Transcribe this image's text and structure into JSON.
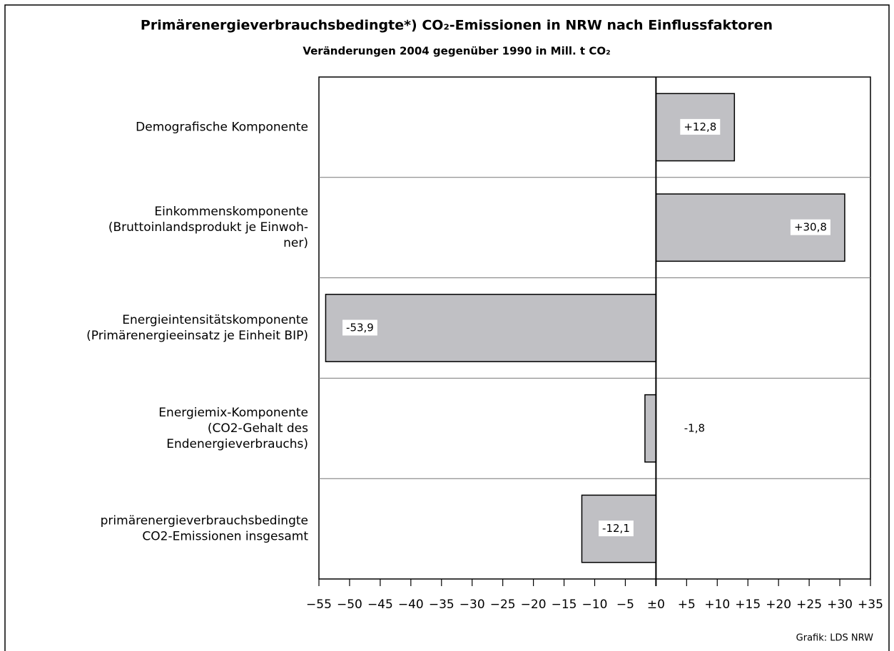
{
  "chart_data": {
    "type": "barh",
    "title": "Primärenergieverbrauchsbedingte*) CO₂-Emissionen in NRW nach Einflussfaktoren",
    "subtitle": "Veränderungen 2004 gegenüber 1990 in Mill. t CO₂",
    "source": "Grafik: LDS NRW",
    "categories": [
      [
        "Demografische Komponente"
      ],
      [
        "Einkommenskomponente",
        "(Bruttoinlandsprodukt je Einwoh-",
        "ner)"
      ],
      [
        "Energieintensitätskomponente",
        "(Primärenergieeinsatz je Einheit BIP)"
      ],
      [
        "Energiemix-Komponente",
        "(CO2-Gehalt des",
        "Endenergieverbrauchs)"
      ],
      [
        "primärenergieverbrauchsbedingte",
        "CO2-Emissionen insgesamt"
      ]
    ],
    "values": [
      12.8,
      30.8,
      -53.9,
      -1.8,
      -12.1
    ],
    "value_labels": [
      "+12,8",
      "+30,8",
      "-53,9",
      "-1,8",
      "-12,1"
    ],
    "color": "#c0c0c4",
    "xlim": [
      -55,
      35
    ],
    "xticks": [
      {
        "value": -55,
        "label": "−55"
      },
      {
        "value": -50,
        "label": "−50"
      },
      {
        "value": -45,
        "label": "−45"
      },
      {
        "value": -40,
        "label": "−40"
      },
      {
        "value": -35,
        "label": "−35"
      },
      {
        "value": -30,
        "label": "−30"
      },
      {
        "value": -25,
        "label": "−25"
      },
      {
        "value": -20,
        "label": "−20"
      },
      {
        "value": -15,
        "label": "−15"
      },
      {
        "value": -10,
        "label": "−10"
      },
      {
        "value": -5,
        "label": "−5"
      },
      {
        "value": 0,
        "label": "±0"
      },
      {
        "value": 5,
        "label": "+5"
      },
      {
        "value": 10,
        "label": "+10"
      },
      {
        "value": 15,
        "label": "+15"
      },
      {
        "value": 20,
        "label": "+20"
      },
      {
        "value": 25,
        "label": "+25"
      },
      {
        "value": 30,
        "label": "+30"
      },
      {
        "value": 35,
        "label": "+35"
      }
    ]
  }
}
